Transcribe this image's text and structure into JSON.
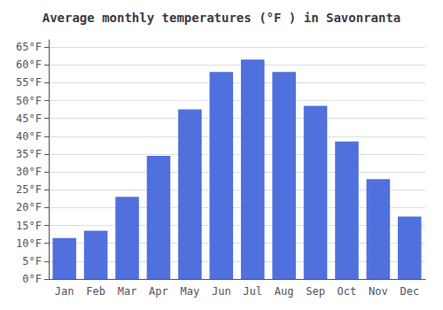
{
  "chart_data": {
    "type": "bar",
    "title": "Average monthly temperatures (°F ) in Savonranta",
    "categories": [
      "Jan",
      "Feb",
      "Mar",
      "Apr",
      "May",
      "Jun",
      "Jul",
      "Aug",
      "Sep",
      "Oct",
      "Nov",
      "Dec"
    ],
    "values": [
      11.5,
      13.5,
      23.0,
      34.5,
      47.5,
      58.0,
      61.5,
      58.0,
      48.5,
      38.5,
      28.0,
      17.5
    ],
    "ylim": [
      0,
      67
    ],
    "yticks": [
      {
        "value": 0,
        "label": "0°F"
      },
      {
        "value": 5,
        "label": "5°F"
      },
      {
        "value": 10,
        "label": "10°F"
      },
      {
        "value": 15,
        "label": "15°F"
      },
      {
        "value": 20,
        "label": "20°F"
      },
      {
        "value": 25,
        "label": "25°F"
      },
      {
        "value": 30,
        "label": "30°F"
      },
      {
        "value": 35,
        "label": "35°F"
      },
      {
        "value": 40,
        "label": "40°F"
      },
      {
        "value": 45,
        "label": "45°F"
      },
      {
        "value": 50,
        "label": "50°F"
      },
      {
        "value": 55,
        "label": "55°F"
      },
      {
        "value": 60,
        "label": "60°F"
      },
      {
        "value": 65,
        "label": "65°F"
      }
    ],
    "grid": true
  }
}
